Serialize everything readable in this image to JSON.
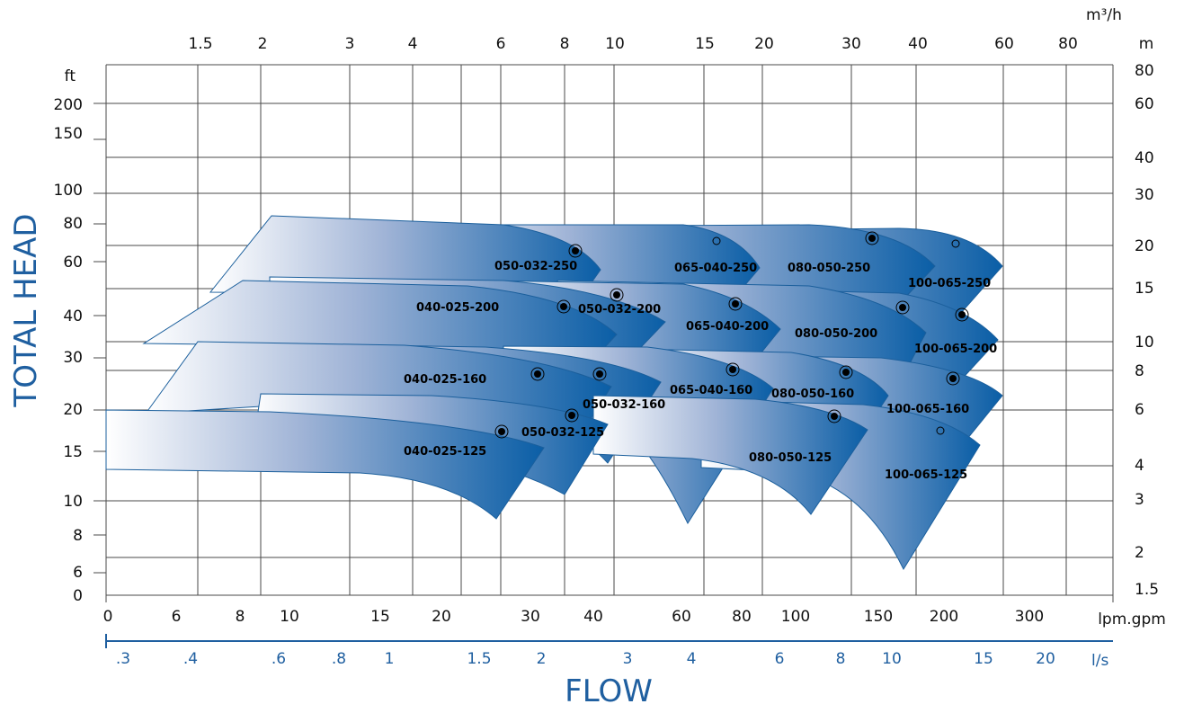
{
  "chart_data": {
    "type": "area",
    "xlabel": "FLOW",
    "ylabel": "TOTAL HEAD",
    "units": {
      "flow_top": "m³/h",
      "head_right": "m",
      "head_left": "ft",
      "flow_bottom": "lpm.gpm",
      "flow_blue": "l/s"
    },
    "axes": {
      "top_m3h": [
        "1.5",
        "2",
        "3",
        "4",
        "6",
        "8",
        "10",
        "15",
        "20",
        "30",
        "40",
        "60",
        "80"
      ],
      "right_m": [
        "80",
        "60",
        "40",
        "30",
        "20",
        "15",
        "10",
        "8",
        "6",
        "4",
        "3",
        "2",
        "1.5"
      ],
      "left_ft": [
        "200",
        "150",
        "100",
        "80",
        "60",
        "40",
        "30",
        "20",
        "15",
        "10",
        "8",
        "6",
        "0"
      ],
      "bottom_lpm": [
        "0",
        "6",
        "8",
        "10",
        "15",
        "20",
        "30",
        "40",
        "60",
        "80",
        "100",
        "150",
        "200",
        "300"
      ],
      "blue_ls": [
        ".3",
        ".4",
        ".6",
        ".8",
        "1",
        "1.5",
        "2",
        "3",
        "4",
        "6",
        "8",
        "10",
        "15",
        "20"
      ]
    },
    "xlim_m3h": [
      1.2,
      100
    ],
    "ylim_m": [
      1.4,
      80
    ],
    "log_scale": true,
    "grid": true,
    "series": [
      {
        "name": "040-025-125",
        "bep": [
          6.8,
          5.3
        ]
      },
      {
        "name": "040-025-160",
        "bep": [
          7.8,
          8.2
        ]
      },
      {
        "name": "040-025-200",
        "bep": [
          8.1,
          13.2
        ]
      },
      {
        "name": "050-032-125",
        "bep": [
          9.1,
          5.9
        ]
      },
      {
        "name": "050-032-160",
        "bep": [
          9.3,
          8.1
        ]
      },
      {
        "name": "050-032-200",
        "bep": [
          10.0,
          14.5
        ]
      },
      {
        "name": "050-032-250",
        "bep": [
          8.5,
          20.5
        ]
      },
      {
        "name": "065-040-160",
        "bep": [
          16.0,
          8.4
        ]
      },
      {
        "name": "065-040-200",
        "bep": [
          16.2,
          13.5
        ]
      },
      {
        "name": "065-040-250",
        "bep": [
          15.5,
          21.5
        ]
      },
      {
        "name": "080-050-125",
        "bep": [
          28.5,
          5.9
        ]
      },
      {
        "name": "080-050-160",
        "bep": [
          30.5,
          8.2
        ]
      },
      {
        "name": "080-050-200",
        "bep": [
          38.5,
          13.1
        ]
      },
      {
        "name": "080-050-250",
        "bep": [
          33.0,
          21.7
        ]
      },
      {
        "name": "100-065-125",
        "bep": [
          47.0,
          5.4
        ]
      },
      {
        "name": "100-065-160",
        "bep": [
          51.0,
          7.6
        ]
      },
      {
        "name": "100-065-200",
        "bep": [
          54.0,
          12.6
        ]
      },
      {
        "name": "100-065-250",
        "bep": [
          48.0,
          21.0
        ]
      }
    ]
  }
}
